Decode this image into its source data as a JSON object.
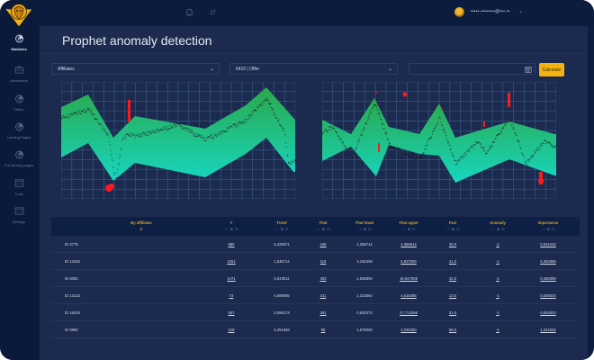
{
  "app": {
    "logo": "lion-mascot-logo",
    "colors": {
      "accent": "#f4b20f",
      "band_top": "#2aa84a",
      "band_bottom": "#17d6c0",
      "anomaly": "#ff1a1a",
      "background": "#1b2a4e",
      "sidebar": "#0b1a3a"
    }
  },
  "sidebar": {
    "items": [
      {
        "label": "Statistics",
        "icon": "pie-chart-icon",
        "active": true
      },
      {
        "label": "Advertisers",
        "icon": "briefcase-icon",
        "active": false
      },
      {
        "label": "Offers",
        "icon": "pie-chart-icon",
        "active": false
      },
      {
        "label": "Landing Pages",
        "icon": "pie-chart-icon",
        "active": false
      },
      {
        "label": "Pre-landing pages",
        "icon": "pie-chart-icon",
        "active": false
      },
      {
        "label": "Tools",
        "icon": "code-window-icon",
        "active": false
      },
      {
        "label": "Settings",
        "icon": "code-window-icon",
        "active": false
      }
    ]
  },
  "topbar": {
    "icons": [
      "bell-icon",
      "swap-arrows-icon"
    ],
    "user_email": "•••••.••••••••@•••.••",
    "user_menu_chevron": "⌄"
  },
  "page": {
    "title": "Prophet anomaly detection"
  },
  "filters": {
    "group_by": {
      "value": "Affiliates"
    },
    "offer": {
      "value": "6410 | Offer"
    },
    "date_range": {
      "value": ""
    },
    "calculate_label": "Calculate"
  },
  "charts": [
    {
      "name": "left-anomaly-chart",
      "series": [
        "forecast band (yhat_lower–yhat_upper)",
        "actual values",
        "anomalies"
      ]
    },
    {
      "name": "right-anomaly-chart",
      "series": [
        "forecast band (yhat_lower–yhat_upper)",
        "actual values",
        "anomalies"
      ]
    }
  ],
  "table": {
    "columns": [
      {
        "label": "By affiliates",
        "sort": "⇵"
      },
      {
        "label": "Y",
        "sort": "↓↑ ⊠ ⊡"
      },
      {
        "label": "Trend",
        "sort": "↓↑ ⊠ ⊡"
      },
      {
        "label": "Yhat",
        "sort": "↓↑ ⊠ ⊡"
      },
      {
        "label": "Yhat lower",
        "sort": "↓↑ ⊠ ⊡"
      },
      {
        "label": "Yhat upper",
        "sort": "↓↑ ⊠ ⊡"
      },
      {
        "label": "Fact",
        "sort": "↓↑ ⊠ ⊡"
      },
      {
        "label": "Anomaly",
        "sort": "↓↑ ⊠ ⊡"
      },
      {
        "label": "Importance",
        "sort": "↓↑ ⊠ ⊡"
      }
    ],
    "rows": [
      [
        "ID 2775",
        "880",
        "5,428571",
        "155",
        "1,285714",
        "4,366814",
        "28.0",
        "-1",
        "0,541042"
      ],
      [
        "ID 13454",
        "1251",
        "1,535714",
        "118",
        "3,192308",
        "5,937500",
        "41.0",
        "-1",
        "5,394865"
      ],
      [
        "ID 6062",
        "1471",
        "0,043011",
        "393",
        "1,838894",
        "16,647059",
        "42.0",
        "-1",
        "0,482085"
      ],
      [
        "ID 12122",
        "73",
        "4,689655",
        "311",
        "1,322564",
        "4,615385",
        "13.0",
        "-1",
        "0,836620"
      ],
      [
        "ID 16420",
        "857",
        "0,095174",
        "361",
        "0,925373",
        "27,714286",
        "31.0",
        "-1",
        "0,834823"
      ],
      [
        "ID 9980",
        "319",
        "3,451948",
        "86",
        "1,575000",
        "2,038350",
        "58.0",
        "-1",
        "1,342562"
      ]
    ]
  }
}
